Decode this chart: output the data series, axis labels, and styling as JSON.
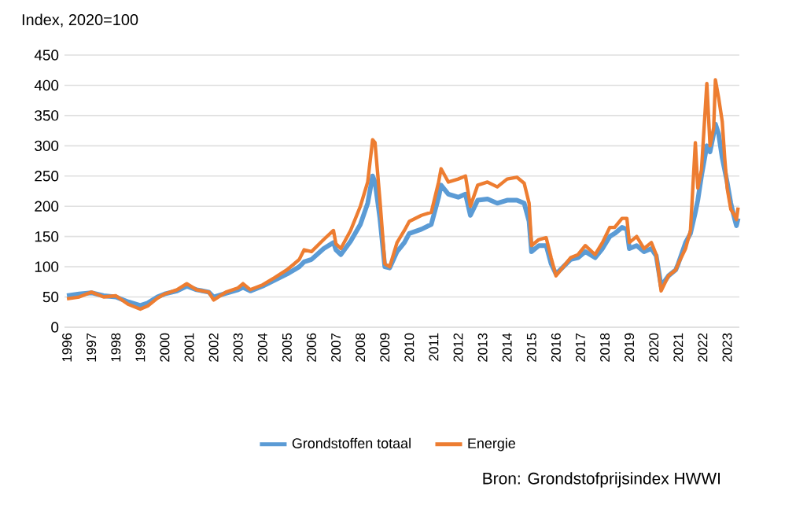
{
  "chart_data": {
    "type": "line",
    "ylabel": "Index, 2020=100",
    "x": [
      1996.0,
      1996.5,
      1997.0,
      1997.5,
      1998.0,
      1998.5,
      1999.0,
      1999.3,
      1999.7,
      2000.0,
      2000.5,
      2000.9,
      2001.3,
      2001.8,
      2002.0,
      2002.5,
      2003.0,
      2003.2,
      2003.5,
      2004.0,
      2004.5,
      2005.0,
      2005.3,
      2005.5,
      2005.7,
      2006.0,
      2006.5,
      2006.9,
      2007.0,
      2007.2,
      2007.6,
      2008.0,
      2008.3,
      2008.5,
      2008.6,
      2008.8,
      2009.0,
      2009.2,
      2009.5,
      2009.8,
      2010.0,
      2010.5,
      2010.9,
      2011.2,
      2011.3,
      2011.6,
      2012.0,
      2012.3,
      2012.5,
      2012.8,
      2013.2,
      2013.6,
      2014.0,
      2014.4,
      2014.7,
      2014.9,
      2015.0,
      2015.3,
      2015.6,
      2015.8,
      2016.0,
      2016.3,
      2016.6,
      2016.9,
      2017.2,
      2017.6,
      2017.9,
      2018.2,
      2018.4,
      2018.7,
      2018.9,
      2019.0,
      2019.3,
      2019.6,
      2019.9,
      2020.1,
      2020.3,
      2020.6,
      2020.9,
      2021.0,
      2021.3,
      2021.5,
      2021.7,
      2021.8,
      2021.95,
      2022.17,
      2022.3,
      2022.45,
      2022.52,
      2022.65,
      2022.8,
      2022.9,
      2023.0,
      2023.15,
      2023.3,
      2023.38,
      2023.45
    ],
    "series": [
      {
        "name": "Grondstoffen totaal",
        "color": "#5b9bd5",
        "values": [
          52,
          55,
          57,
          52,
          50,
          42,
          36,
          40,
          50,
          55,
          60,
          68,
          62,
          58,
          50,
          56,
          62,
          66,
          60,
          68,
          78,
          88,
          95,
          100,
          108,
          112,
          130,
          140,
          128,
          120,
          142,
          170,
          205,
          250,
          240,
          180,
          100,
          98,
          125,
          140,
          155,
          162,
          170,
          215,
          235,
          220,
          215,
          220,
          185,
          210,
          212,
          205,
          210,
          210,
          205,
          175,
          125,
          135,
          135,
          105,
          88,
          100,
          112,
          115,
          125,
          115,
          130,
          150,
          155,
          165,
          162,
          130,
          135,
          125,
          130,
          118,
          68,
          85,
          95,
          105,
          140,
          155,
          190,
          210,
          250,
          300,
          290,
          320,
          336,
          320,
          280,
          260,
          240,
          205,
          180,
          168,
          180
        ]
      },
      {
        "name": "Energie",
        "color": "#ed7d31",
        "values": [
          47,
          50,
          58,
          50,
          52,
          38,
          30,
          35,
          48,
          55,
          62,
          72,
          62,
          58,
          45,
          58,
          65,
          72,
          62,
          70,
          82,
          95,
          105,
          112,
          128,
          125,
          145,
          160,
          138,
          130,
          160,
          200,
          240,
          310,
          305,
          210,
          105,
          100,
          140,
          160,
          175,
          185,
          190,
          240,
          262,
          240,
          245,
          250,
          200,
          235,
          240,
          232,
          245,
          248,
          238,
          205,
          135,
          145,
          148,
          115,
          85,
          100,
          115,
          120,
          135,
          120,
          140,
          165,
          165,
          180,
          180,
          140,
          150,
          130,
          140,
          120,
          60,
          85,
          95,
          105,
          130,
          160,
          305,
          230,
          260,
          403,
          300,
          330,
          409,
          380,
          340,
          280,
          230,
          195,
          185,
          178,
          198
        ]
      }
    ],
    "xlim": [
      1995.9,
      2023.5
    ],
    "ylim": [
      0,
      450
    ],
    "xticks": [
      1996,
      1997,
      1998,
      1999,
      2000,
      2001,
      2002,
      2003,
      2004,
      2005,
      2006,
      2007,
      2008,
      2009,
      2010,
      2011,
      2012,
      2013,
      2014,
      2015,
      2016,
      2017,
      2018,
      2019,
      2020,
      2021,
      2022,
      2023
    ],
    "yticks": [
      0,
      50,
      100,
      150,
      200,
      250,
      300,
      350,
      400,
      450
    ],
    "grid": "y",
    "legend": "bottom",
    "marker": "none",
    "line_style": "solid",
    "annotations": [
      "Bron: Grondstofprijsindex HWWI"
    ]
  }
}
